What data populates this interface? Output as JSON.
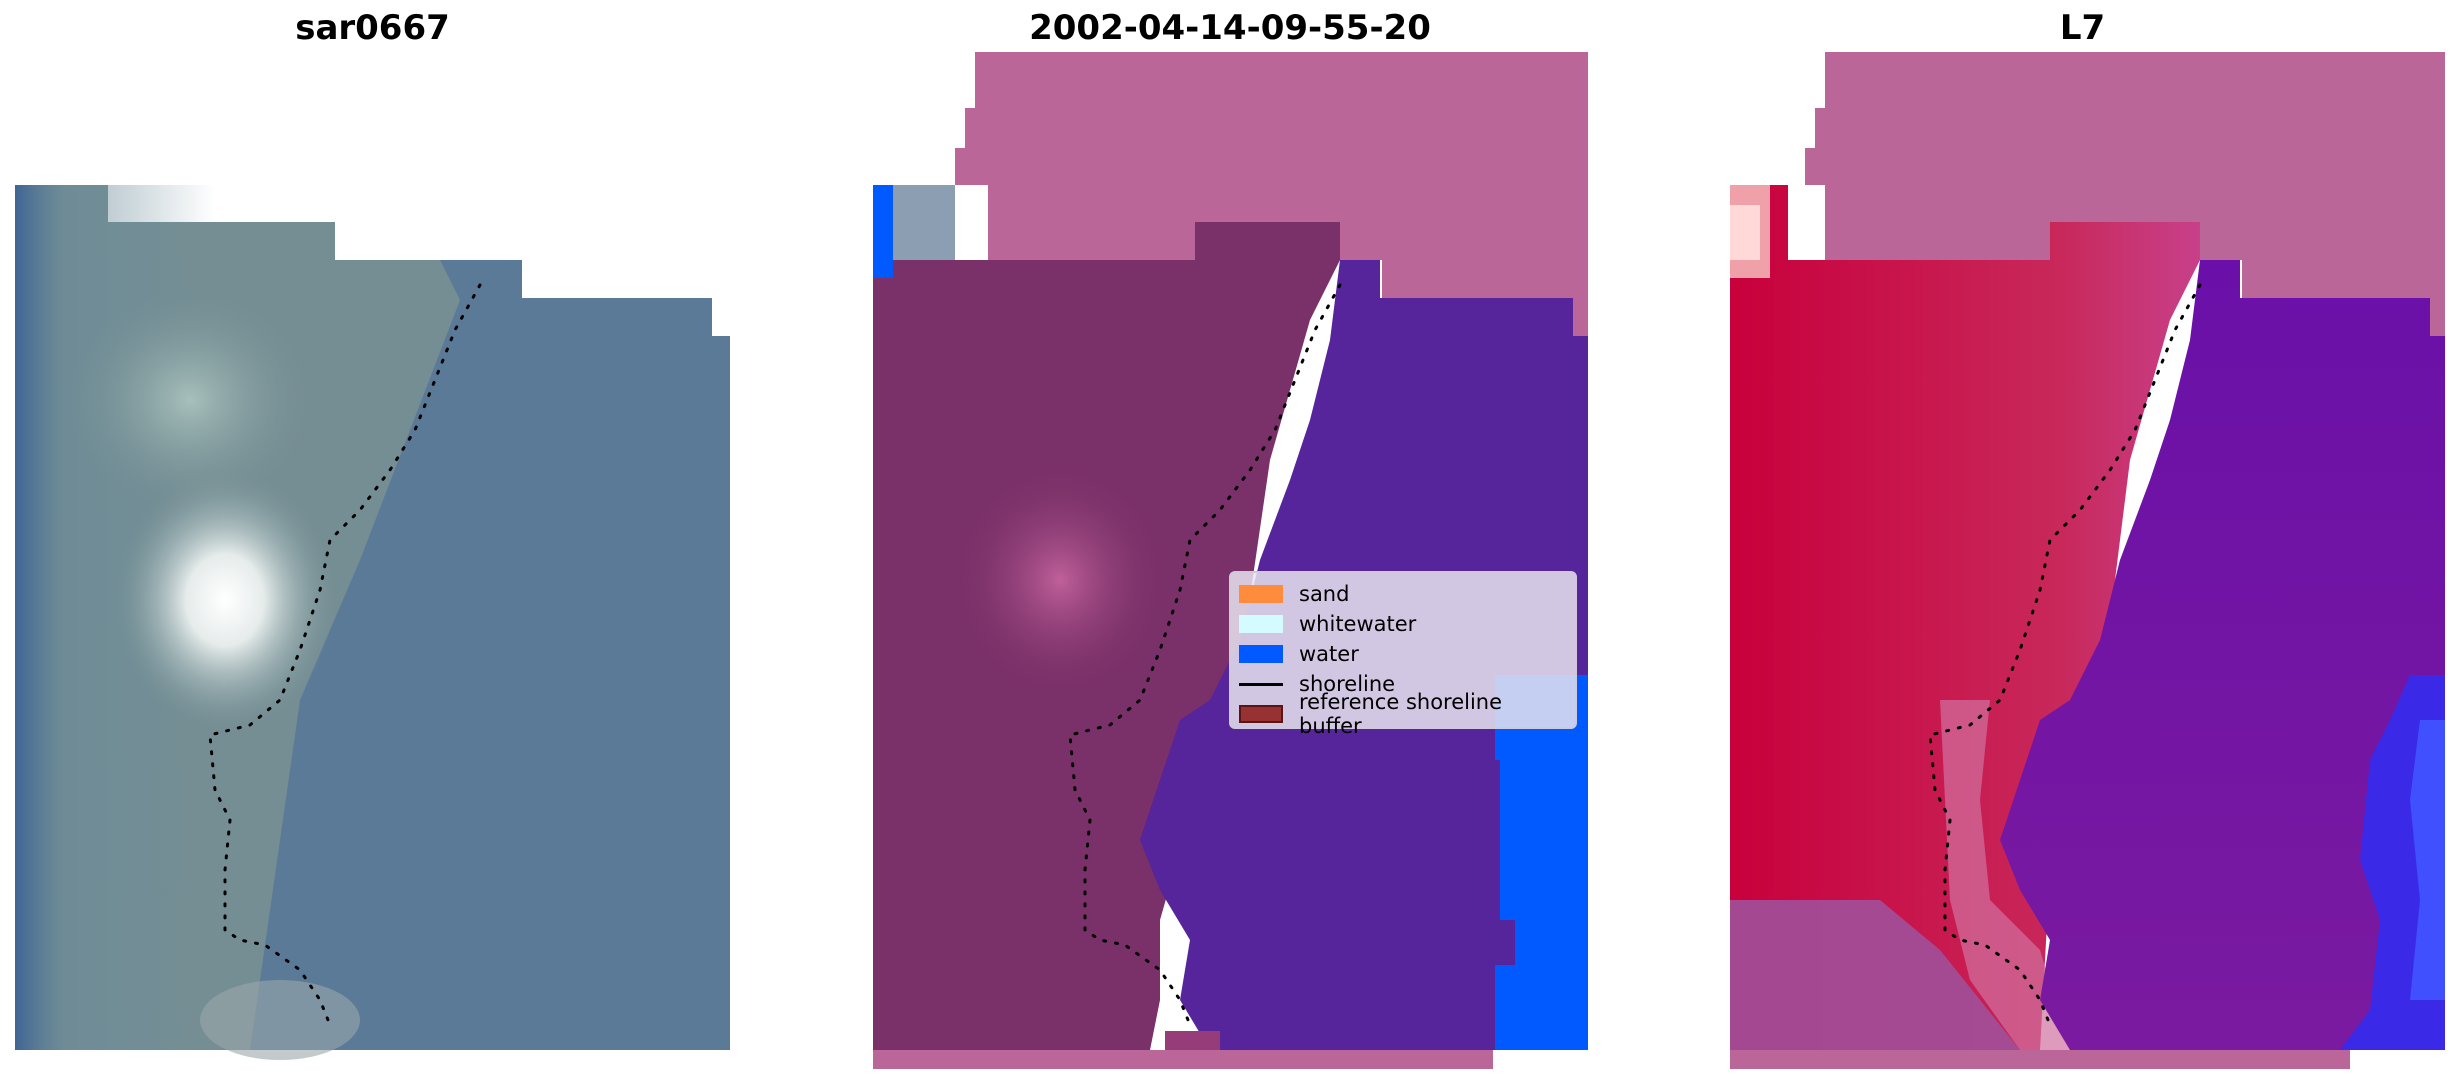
{
  "panels": [
    {
      "title": "sar0667"
    },
    {
      "title": "2002-04-14-09-55-20"
    },
    {
      "title": "L7"
    }
  ],
  "legend": {
    "items": [
      {
        "label": "sand",
        "type": "patch",
        "color": "#ff8c3c"
      },
      {
        "label": "whitewater",
        "type": "patch",
        "color": "#d4fbff"
      },
      {
        "label": "water",
        "type": "patch",
        "color": "#005aff"
      },
      {
        "label": "shoreline",
        "type": "line",
        "color": "#000000"
      },
      {
        "label": "reference shoreline buffer",
        "type": "patch",
        "color": "#963232"
      }
    ]
  }
}
